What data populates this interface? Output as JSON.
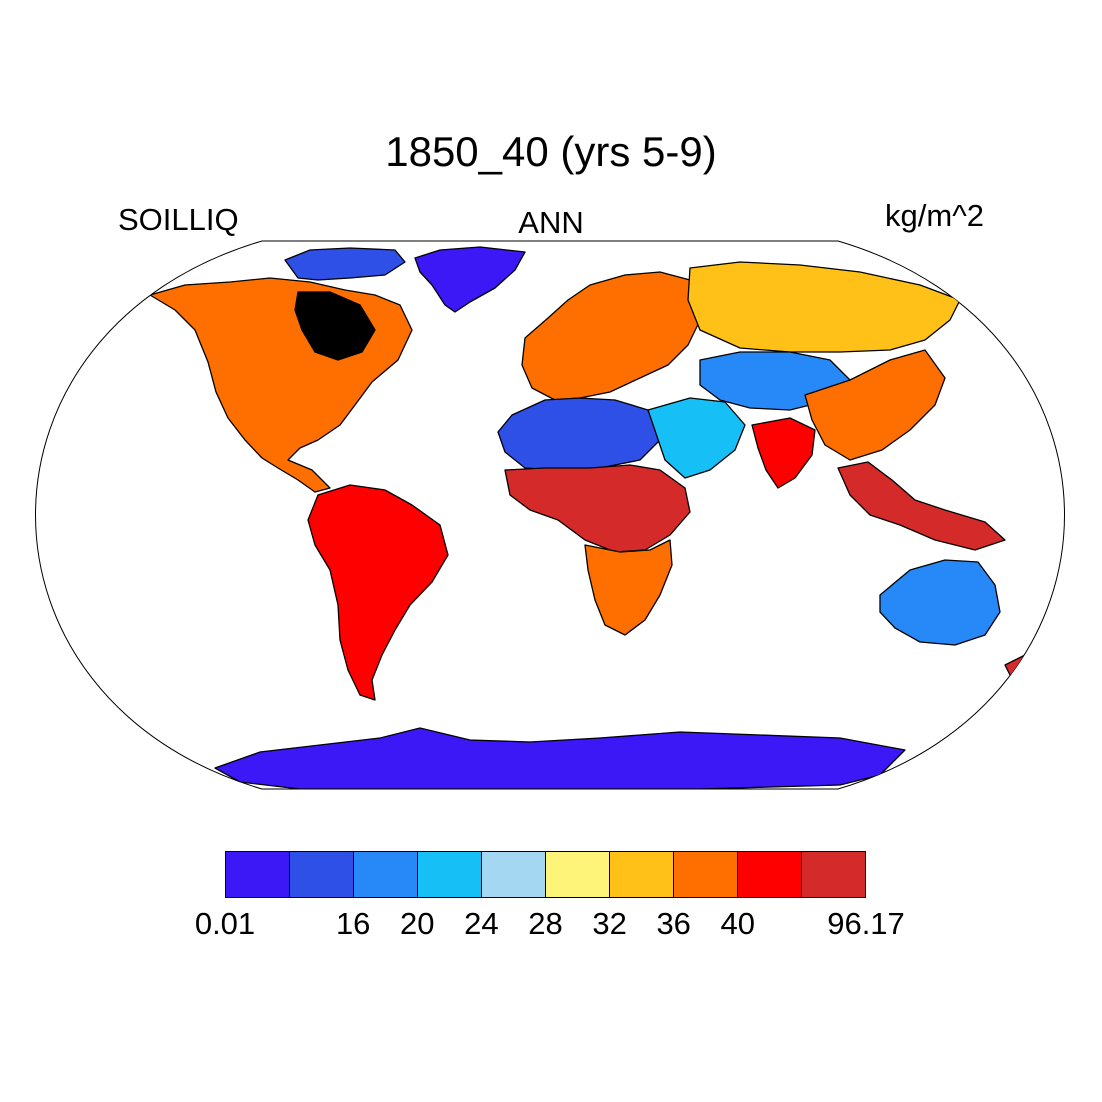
{
  "title": "1850_40 (yrs 5-9)",
  "left_label": "SOILLIQ",
  "center_label": "ANN",
  "right_label": "kg/m^2",
  "colorbar": {
    "colors": [
      "#3b18f5",
      "#2f50e6",
      "#2689f7",
      "#17bff7",
      "#a4d8f2",
      "#fff47a",
      "#ffc018",
      "#ff6f00",
      "#ff0000",
      "#d42a2a"
    ],
    "tick_labels": [
      {
        "box": 0,
        "text": "0.01"
      },
      {
        "box": 2,
        "text": "16"
      },
      {
        "box": 3,
        "text": "20"
      },
      {
        "box": 4,
        "text": "24"
      },
      {
        "box": 5,
        "text": "28"
      },
      {
        "box": 6,
        "text": "32"
      },
      {
        "box": 7,
        "text": "36"
      },
      {
        "box": 8,
        "text": "40"
      },
      {
        "box": 10,
        "text": "96.17"
      }
    ]
  },
  "regions": [
    {
      "name": "greenland",
      "color": "#3b18f5"
    },
    {
      "name": "canadian-arctic",
      "color": "#2f50e6"
    },
    {
      "name": "north-america",
      "color": "#ff6f00"
    },
    {
      "name": "hudson-region",
      "color": "#2689f7"
    },
    {
      "name": "south-america",
      "color": "#ff0000"
    },
    {
      "name": "sahara",
      "color": "#2f50e6"
    },
    {
      "name": "arabia",
      "color": "#17bff7"
    },
    {
      "name": "central-africa",
      "color": "#d42a2a"
    },
    {
      "name": "southern-africa",
      "color": "#ff6f00"
    },
    {
      "name": "europe",
      "color": "#ff6f00"
    },
    {
      "name": "northern-asia",
      "color": "#ffc018"
    },
    {
      "name": "central-asia",
      "color": "#2689f7"
    },
    {
      "name": "india",
      "color": "#ff0000"
    },
    {
      "name": "china",
      "color": "#ff6f00"
    },
    {
      "name": "southeast-asia",
      "color": "#d42a2a"
    },
    {
      "name": "australia",
      "color": "#2689f7"
    },
    {
      "name": "antarctica",
      "color": "#3b18f5"
    }
  ]
}
